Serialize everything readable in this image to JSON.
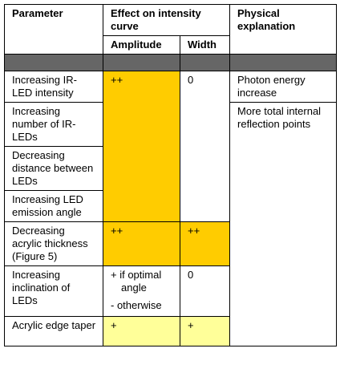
{
  "headers": {
    "parameter": "Parameter",
    "effect": "Effect on intensity curve",
    "amplitude": "Amplitude",
    "width": "Width",
    "physical": "Physical explanation"
  },
  "rows": [
    {
      "parameter": "Increasing IR-LED intensity",
      "amplitude": "++",
      "width": "0",
      "physical": "Photon energy increase"
    },
    {
      "parameter": "Increasing number of IR-LEDs",
      "physical": "More total internal reflection points"
    },
    {
      "parameter": "Decreasing distance between LEDs"
    },
    {
      "parameter": "Increasing LED emission angle"
    },
    {
      "parameter": "Decreasing acrylic thickness (Figure 5)",
      "amplitude": "++",
      "width": "++"
    },
    {
      "parameter": "Increasing inclination of LEDs",
      "amplitude_line1": "+ if optimal",
      "amplitude_line2": "angle",
      "amplitude_line3": "- otherwise",
      "width": "0"
    },
    {
      "parameter": "Acrylic edge taper",
      "amplitude": "+",
      "width": "+"
    }
  ],
  "colors": {
    "highlight_orange": "#ffcc00",
    "highlight_yellow": "#ffff99",
    "separator": "#666666"
  }
}
